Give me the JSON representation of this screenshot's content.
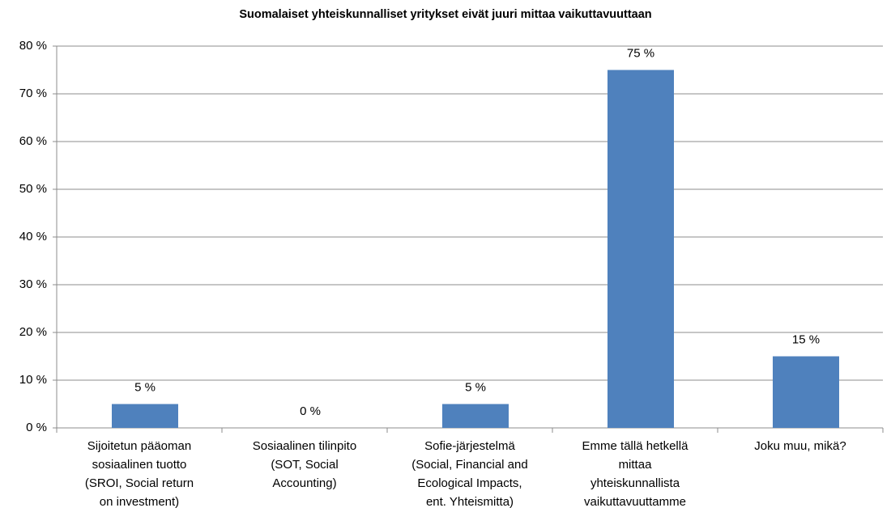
{
  "chart_data": {
    "type": "bar",
    "title": "Suomalaiset yhteiskunnalliset yritykset eivät juuri mittaa vaikuttavuuttaan",
    "categories": [
      [
        "Sijoitetun pääoman",
        "sosiaalinen tuotto",
        "(SROI, Social return",
        "on investment)"
      ],
      [
        "Sosiaalinen tilinpito",
        "(SOT, Social",
        "Accounting)"
      ],
      [
        "Sofie-järjestelmä",
        "(Social, Financial and",
        "Ecological Impacts,",
        "ent. Yhteismitta)"
      ],
      [
        "Emme tällä hetkellä",
        "mittaa",
        "yhteiskunnallista",
        "vaikuttavuuttamme"
      ],
      [
        "Joku muu, mikä?"
      ]
    ],
    "values": [
      5,
      0,
      5,
      75,
      15
    ],
    "value_labels": [
      "5 %",
      "0 %",
      "5 %",
      "75 %",
      "15 %"
    ],
    "color": "#4f81bd",
    "ylim": [
      0,
      80
    ],
    "yticks": [
      {
        "value": 0,
        "label": "0 %"
      },
      {
        "value": 10,
        "label": "10 %"
      },
      {
        "value": 20,
        "label": "20 %"
      },
      {
        "value": 30,
        "label": "30 %"
      },
      {
        "value": 40,
        "label": "40 %"
      },
      {
        "value": 50,
        "label": "50 %"
      },
      {
        "value": 60,
        "label": "60 %"
      },
      {
        "value": 70,
        "label": "70 %"
      },
      {
        "value": 80,
        "label": "80 %"
      }
    ],
    "grid": true
  }
}
